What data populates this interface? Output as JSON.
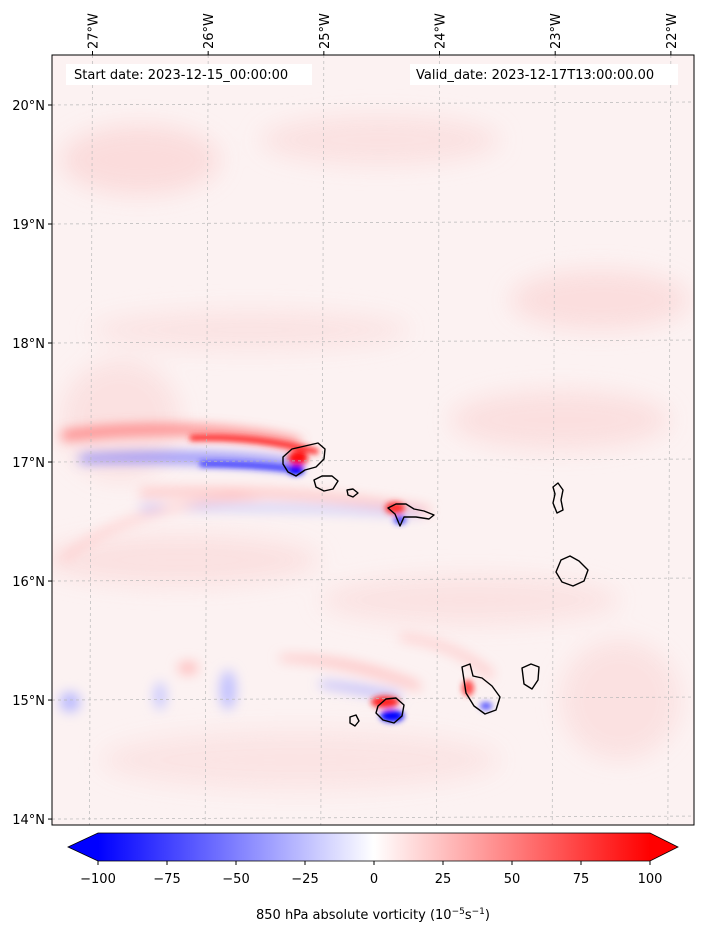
{
  "map": {
    "start_date": "Start date: 2023-12-15_00:00:00",
    "valid_date": "Valid_date: 2023-12-17T13:00:00.00",
    "longitude_labels": [
      "27°W",
      "26°W",
      "25°W",
      "24°W",
      "23°W",
      "22°W"
    ],
    "latitude_labels": [
      "20°N",
      "19°N",
      "18°N",
      "17°N",
      "16°N",
      "15°N",
      "14°N"
    ],
    "extent": {
      "lon_min": -27.35,
      "lon_max": -21.8,
      "lat_min": 13.95,
      "lat_max": 20.42
    },
    "gridlines": true
  },
  "colorbar": {
    "ticks": [
      "−100",
      "−75",
      "−50",
      "−25",
      "0",
      "25",
      "50",
      "75",
      "100"
    ],
    "label_main": "850 hPa absolute vorticity (10",
    "label_sup1": "−5",
    "label_mid": "s",
    "label_sup2": "−1",
    "label_end": ")",
    "vmin": -100,
    "vmax": 100,
    "colormap": "bwr",
    "extend": "both",
    "colors": {
      "negative": "#0000ff",
      "zero": "#ffffff",
      "positive": "#ff0000"
    }
  }
}
